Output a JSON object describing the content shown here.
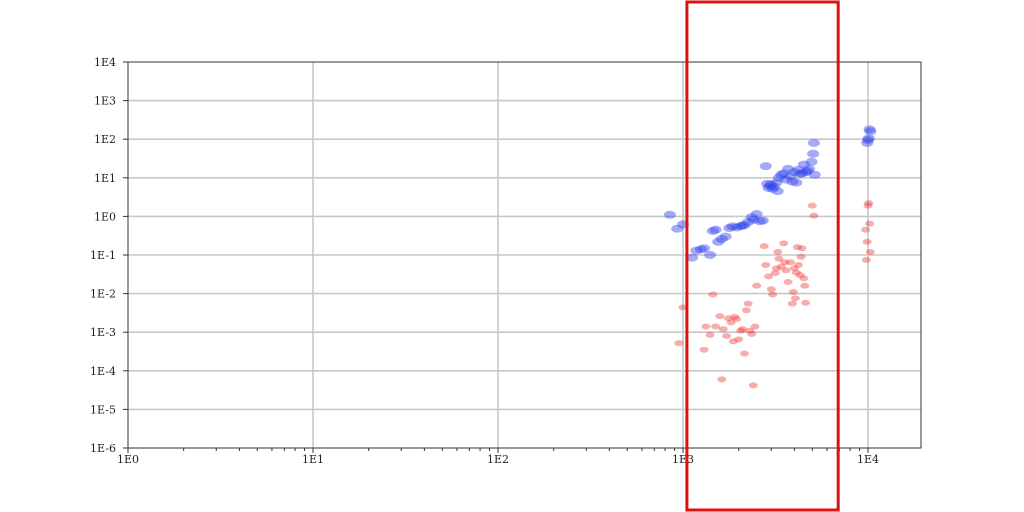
{
  "chart_data": {
    "type": "scatter",
    "title": "",
    "xlabel": "",
    "ylabel": "",
    "x_scale": "log",
    "y_scale": "log",
    "xlim": [
      1,
      20000
    ],
    "ylim": [
      1e-06,
      10000
    ],
    "grid": true,
    "x_tick_values": [
      1,
      10,
      100,
      1000,
      10000
    ],
    "x_tick_labels": [
      "1E0",
      "1E1",
      "1E2",
      "1E3",
      "1E4"
    ],
    "y_tick_values": [
      10000,
      1000,
      100,
      10,
      1,
      0.1,
      0.01,
      0.001,
      0.0001,
      1e-05,
      1e-06
    ],
    "y_tick_labels": [
      "1E4",
      "1E3",
      "1E2",
      "1E1",
      "1E0",
      "1E-1",
      "1E-2",
      "1E-3",
      "1E-4",
      "1E-5",
      "1E-6"
    ],
    "highlight_box": {
      "color": "#dd1111",
      "x_range": [
        1050,
        6900
      ]
    },
    "series": [
      {
        "color": "#3344ee",
        "points": [
          [
            850,
            1.1
          ],
          [
            930,
            0.48
          ],
          [
            1000,
            0.62
          ],
          [
            1120,
            0.085
          ],
          [
            1180,
            0.13
          ],
          [
            1250,
            0.14
          ],
          [
            1300,
            0.15
          ],
          [
            1400,
            0.1
          ],
          [
            1450,
            0.42
          ],
          [
            1500,
            0.45
          ],
          [
            1550,
            0.22
          ],
          [
            1620,
            0.26
          ],
          [
            1700,
            0.3
          ],
          [
            1780,
            0.5
          ],
          [
            1850,
            0.55
          ],
          [
            1950,
            0.52
          ],
          [
            2050,
            0.56
          ],
          [
            2100,
            0.58
          ],
          [
            2150,
            0.6
          ],
          [
            2250,
            0.72
          ],
          [
            2350,
            0.95
          ],
          [
            2400,
            0.82
          ],
          [
            2500,
            1.15
          ],
          [
            2600,
            0.75
          ],
          [
            2700,
            0.78
          ],
          [
            2800,
            20
          ],
          [
            2850,
            7
          ],
          [
            2900,
            5.5
          ],
          [
            2950,
            6.2
          ],
          [
            3000,
            6.8
          ],
          [
            3050,
            5.2
          ],
          [
            3100,
            5.8
          ],
          [
            3200,
            7.5
          ],
          [
            3250,
            4.5
          ],
          [
            3300,
            10
          ],
          [
            3400,
            12
          ],
          [
            3500,
            13
          ],
          [
            3600,
            9
          ],
          [
            3700,
            17
          ],
          [
            3800,
            11
          ],
          [
            3900,
            8
          ],
          [
            4000,
            14
          ],
          [
            4100,
            7.5
          ],
          [
            4200,
            16
          ],
          [
            4300,
            12.5
          ],
          [
            4400,
            13
          ],
          [
            4500,
            22
          ],
          [
            4600,
            14
          ],
          [
            4700,
            15
          ],
          [
            4800,
            17
          ],
          [
            4950,
            26
          ],
          [
            5050,
            42
          ],
          [
            5100,
            80
          ],
          [
            5150,
            12
          ],
          [
            9900,
            80
          ],
          [
            10000,
            95
          ],
          [
            10100,
            105
          ],
          [
            10200,
            180
          ],
          [
            10300,
            160
          ]
        ]
      },
      {
        "color": "#ee3333",
        "points": [
          [
            950,
            0.00052
          ],
          [
            1000,
            0.0044
          ],
          [
            1300,
            0.00035
          ],
          [
            1330,
            0.0014
          ],
          [
            1400,
            0.00085
          ],
          [
            1450,
            0.0095
          ],
          [
            1500,
            0.0014
          ],
          [
            1580,
            0.0026
          ],
          [
            1620,
            6e-05
          ],
          [
            1650,
            0.0012
          ],
          [
            1720,
            0.0008
          ],
          [
            1760,
            0.0023
          ],
          [
            1820,
            0.0018
          ],
          [
            1870,
            0.00058
          ],
          [
            1900,
            0.0025
          ],
          [
            1950,
            0.0022
          ],
          [
            2000,
            0.00065
          ],
          [
            2050,
            0.0011
          ],
          [
            2100,
            0.0012
          ],
          [
            2150,
            0.00028
          ],
          [
            2200,
            0.0037
          ],
          [
            2250,
            0.0055
          ],
          [
            2300,
            0.0011
          ],
          [
            2350,
            0.0009
          ],
          [
            2400,
            4.2e-05
          ],
          [
            2450,
            0.0014
          ],
          [
            2500,
            0.016
          ],
          [
            2750,
            0.17
          ],
          [
            2800,
            0.055
          ],
          [
            2900,
            0.028
          ],
          [
            3000,
            0.013
          ],
          [
            3050,
            0.0095
          ],
          [
            3150,
            0.034
          ],
          [
            3200,
            0.045
          ],
          [
            3250,
            0.12
          ],
          [
            3300,
            0.08
          ],
          [
            3400,
            0.05
          ],
          [
            3500,
            0.2
          ],
          [
            3550,
            0.065
          ],
          [
            3600,
            0.04
          ],
          [
            3700,
            0.02
          ],
          [
            3800,
            0.065
          ],
          [
            3900,
            0.0055
          ],
          [
            3950,
            0.011
          ],
          [
            4000,
            0.045
          ],
          [
            4050,
            0.0075
          ],
          [
            4100,
            0.035
          ],
          [
            4150,
            0.16
          ],
          [
            4200,
            0.055
          ],
          [
            4300,
            0.03
          ],
          [
            4350,
            0.09
          ],
          [
            4400,
            0.15
          ],
          [
            4500,
            0.025
          ],
          [
            4550,
            0.016
          ],
          [
            4600,
            0.0058
          ],
          [
            5000,
            1.9
          ],
          [
            5100,
            1.05
          ],
          [
            9700,
            0.45
          ],
          [
            9800,
            0.075
          ],
          [
            9900,
            0.22
          ],
          [
            10000,
            1.9
          ],
          [
            10100,
            2.2
          ],
          [
            10200,
            0.65
          ],
          [
            10300,
            0.12
          ]
        ]
      }
    ]
  }
}
